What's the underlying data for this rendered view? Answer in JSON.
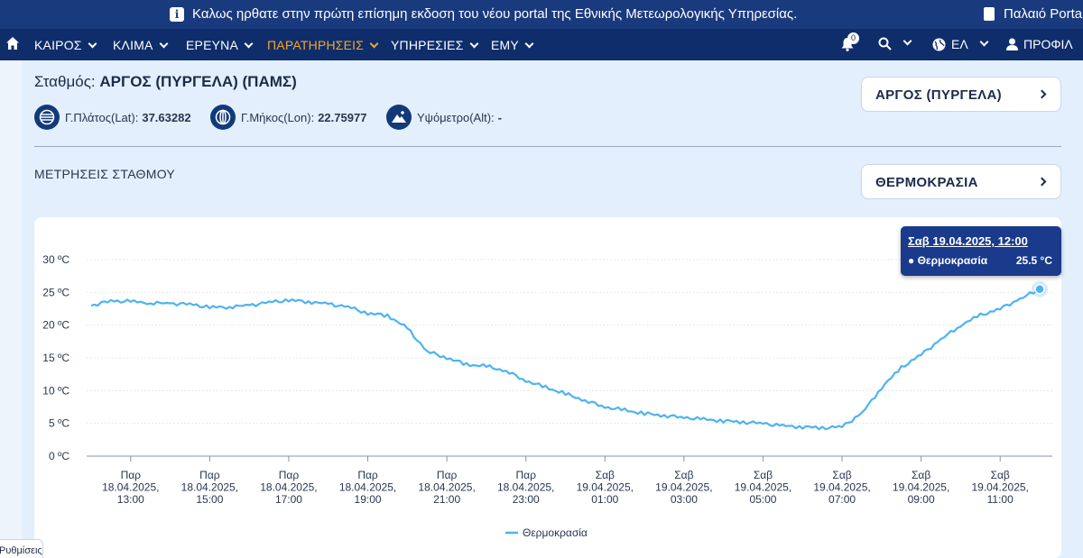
{
  "banner": {
    "message": "Καλως ηρθατε στην πρώτη επίσημη εκδοση του νέου portal της Εθνικής Μετεωρολογικής Υπηρεσίας.",
    "old_portal": "Παλαιό Portal"
  },
  "nav": {
    "items": [
      {
        "label": "ΚΑΙΡΟΣ"
      },
      {
        "label": "ΚΛΙΜΑ"
      },
      {
        "label": "ΕΡΕΥΝΑ"
      },
      {
        "label": "ΠΑΡΑΤΗΡΗΣΕΙΣ"
      },
      {
        "label": "ΥΠΗΡΕΣΙΕΣ"
      },
      {
        "label": "ΕΜΥ"
      }
    ],
    "notifications_count": "0",
    "language": "ΕΛ",
    "profile": "ΠΡΟΦΙΛ"
  },
  "station": {
    "label": "Σταθμός:",
    "name": "ΑΡΓΟΣ (ΠΥΡΓΕΛΑ) (ΠΑΜΣ)",
    "lat_label": "Γ.Πλάτος(Lat):",
    "lat": "37.63282",
    "lon_label": "Γ.Μήκος(Lon):",
    "lon": "22.75977",
    "alt_label": "Υψόμετρο(Alt):",
    "alt": "-"
  },
  "selectors": {
    "station": "ΑΡΓΟΣ (ΠΥΡΓΕΛΑ)",
    "parameter": "ΘΕΡΜΟΚΡΑΣΙΑ"
  },
  "section_title": "ΜΕΤΡΗΣΕΙΣ ΣΤΑΘΜΟΥ",
  "tooltip": {
    "date": "Σαβ 19.04.2025, 12:00",
    "series": "Θερμοκρασία",
    "value": "25.5 °C"
  },
  "cookie": "Ρυθμίσεις cookie",
  "chart_data": {
    "type": "line",
    "ylim": [
      0,
      30
    ],
    "y_ticks": [
      0,
      5,
      10,
      15,
      20,
      25,
      30
    ],
    "y_tick_labels": [
      "0 ºC",
      "5 ºC",
      "10 ºC",
      "15 ºC",
      "20 ºC",
      "25 ºC",
      "30 ºC"
    ],
    "x_ticks": [
      {
        "day": "Παρ",
        "date": "18.04.2025,",
        "time": "13:00"
      },
      {
        "day": "Παρ",
        "date": "18.04.2025,",
        "time": "15:00"
      },
      {
        "day": "Παρ",
        "date": "18.04.2025,",
        "time": "17:00"
      },
      {
        "day": "Παρ",
        "date": "18.04.2025,",
        "time": "19:00"
      },
      {
        "day": "Παρ",
        "date": "18.04.2025,",
        "time": "21:00"
      },
      {
        "day": "Παρ",
        "date": "18.04.2025,",
        "time": "23:00"
      },
      {
        "day": "Σαβ",
        "date": "19.04.2025,",
        "time": "01:00"
      },
      {
        "day": "Σαβ",
        "date": "19.04.2025,",
        "time": "03:00"
      },
      {
        "day": "Σαβ",
        "date": "19.04.2025,",
        "time": "05:00"
      },
      {
        "day": "Σαβ",
        "date": "19.04.2025,",
        "time": "07:00"
      },
      {
        "day": "Σαβ",
        "date": "19.04.2025,",
        "time": "09:00"
      },
      {
        "day": "Σαβ",
        "date": "19.04.2025,",
        "time": "11:00"
      }
    ],
    "series": [
      {
        "name": "Θερμοκρασία",
        "color": "#4eb3f0",
        "points": [
          [
            "18.04.2025 12:00",
            23.0
          ],
          [
            "18.04.2025 12:30",
            23.7
          ],
          [
            "18.04.2025 13:00",
            23.6
          ],
          [
            "18.04.2025 13:30",
            23.4
          ],
          [
            "18.04.2025 14:00",
            23.3
          ],
          [
            "18.04.2025 14:30",
            23.2
          ],
          [
            "18.04.2025 15:00",
            22.7
          ],
          [
            "18.04.2025 15:30",
            22.8
          ],
          [
            "18.04.2025 16:00",
            23.0
          ],
          [
            "18.04.2025 16:30",
            23.5
          ],
          [
            "18.04.2025 17:00",
            23.8
          ],
          [
            "18.04.2025 17:30",
            23.6
          ],
          [
            "18.04.2025 18:00",
            23.2
          ],
          [
            "18.04.2025 18:30",
            22.8
          ],
          [
            "18.04.2025 19:00",
            21.8
          ],
          [
            "18.04.2025 19:30",
            21.5
          ],
          [
            "18.04.2025 20:00",
            19.5
          ],
          [
            "18.04.2025 20:30",
            16.0
          ],
          [
            "18.04.2025 21:00",
            15.0
          ],
          [
            "18.04.2025 21:30",
            14.0
          ],
          [
            "18.04.2025 22:00",
            13.7
          ],
          [
            "18.04.2025 22:30",
            13.0
          ],
          [
            "18.04.2025 23:00",
            11.5
          ],
          [
            "18.04.2025 23:30",
            10.5
          ],
          [
            "19.04.2025 00:00",
            9.5
          ],
          [
            "19.04.2025 00:30",
            8.5
          ],
          [
            "19.04.2025 01:00",
            7.5
          ],
          [
            "19.04.2025 01:30",
            7.0
          ],
          [
            "19.04.2025 02:00",
            6.5
          ],
          [
            "19.04.2025 02:30",
            6.2
          ],
          [
            "19.04.2025 03:00",
            5.9
          ],
          [
            "19.04.2025 03:30",
            5.6
          ],
          [
            "19.04.2025 04:00",
            5.4
          ],
          [
            "19.04.2025 04:30",
            5.2
          ],
          [
            "19.04.2025 05:00",
            5.0
          ],
          [
            "19.04.2025 05:30",
            4.6
          ],
          [
            "19.04.2025 06:00",
            4.5
          ],
          [
            "19.04.2025 06:30",
            4.3
          ],
          [
            "19.04.2025 07:00",
            4.5
          ],
          [
            "19.04.2025 07:30",
            6.5
          ],
          [
            "19.04.2025 08:00",
            10.5
          ],
          [
            "19.04.2025 08:30",
            13.5
          ],
          [
            "19.04.2025 09:00",
            15.5
          ],
          [
            "19.04.2025 09:30",
            17.8
          ],
          [
            "19.04.2025 10:00",
            20.0
          ],
          [
            "19.04.2025 10:30",
            21.5
          ],
          [
            "19.04.2025 11:00",
            22.5
          ],
          [
            "19.04.2025 11:30",
            24.0
          ],
          [
            "19.04.2025 12:00",
            25.5
          ]
        ]
      }
    ],
    "legend": "bottom"
  }
}
